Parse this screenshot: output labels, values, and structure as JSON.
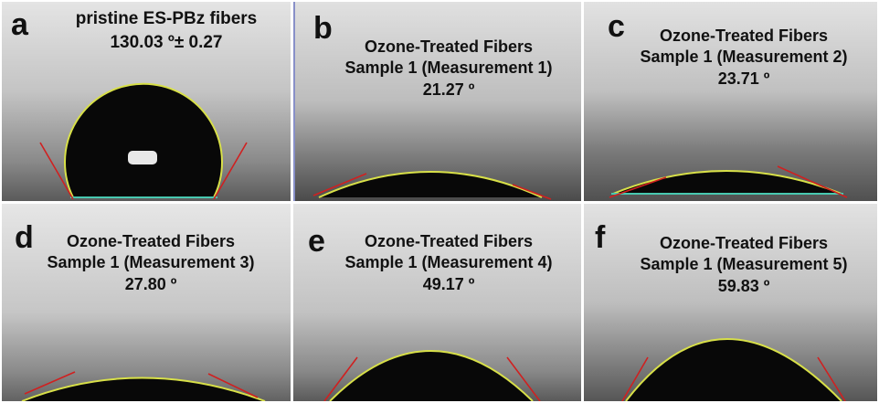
{
  "panels": [
    {
      "id": "a",
      "letter": "a",
      "lines": [
        "pristine ES-PBz fibers",
        "130.03 º± 0.27"
      ]
    },
    {
      "id": "b",
      "letter": "b",
      "lines": [
        "Ozone-Treated Fibers",
        "Sample 1 (Measurement 1)",
        "21.27 º"
      ]
    },
    {
      "id": "c",
      "letter": "c",
      "lines": [
        "Ozone-Treated Fibers",
        "Sample 1 (Measurement 2)",
        "23.71 º"
      ]
    },
    {
      "id": "d",
      "letter": "d",
      "lines": [
        "Ozone-Treated Fibers",
        "Sample 1 (Measurement 3)",
        "27.80 º"
      ]
    },
    {
      "id": "e",
      "letter": "e",
      "lines": [
        "Ozone-Treated Fibers",
        "Sample 1 (Measurement 4)",
        "49.17 º"
      ]
    },
    {
      "id": "f",
      "letter": "f",
      "lines": [
        "Ozone-Treated Fibers",
        "Sample 1 (Measurement 5)",
        "59.83 º"
      ]
    }
  ],
  "colors": {
    "fit_curve": "#d8e048",
    "tangent_line": "#d02020",
    "baseline": "#48c8b0",
    "droplet": "#080808"
  }
}
